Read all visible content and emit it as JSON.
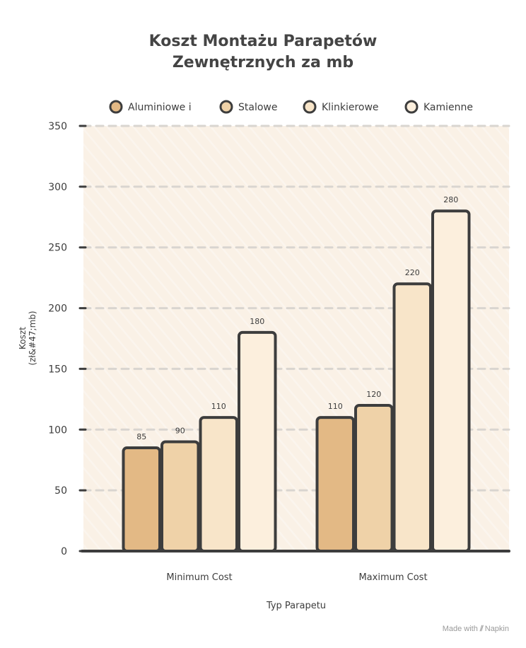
{
  "chart_data": {
    "type": "bar",
    "title_lines": [
      "Koszt Montażu Parapetów",
      "Zewnętrznych za mb"
    ],
    "xlabel": "Typ Parapetu",
    "ylabel_lines": [
      "Koszt",
      "(zł&#47;mb)"
    ],
    "categories": [
      "Minimum Cost",
      "Maximum Cost"
    ],
    "series": [
      {
        "name": "Aluminiowe i",
        "color": "#e3b985",
        "values": [
          85,
          110
        ]
      },
      {
        "name": "Stalowe",
        "color": "#efd2a8",
        "values": [
          90,
          120
        ]
      },
      {
        "name": "Klinkierowe",
        "color": "#f8e5c9",
        "values": [
          110,
          220
        ]
      },
      {
        "name": "Kamienne",
        "color": "#fcefdd",
        "values": [
          180,
          280
        ]
      }
    ],
    "ylim": [
      0,
      350
    ],
    "yticks": [
      0,
      50,
      100,
      150,
      200,
      250,
      300,
      350
    ],
    "grid": true,
    "legend_position": "top"
  },
  "footer": {
    "made_with": "Made with",
    "brand": "Napkin"
  }
}
